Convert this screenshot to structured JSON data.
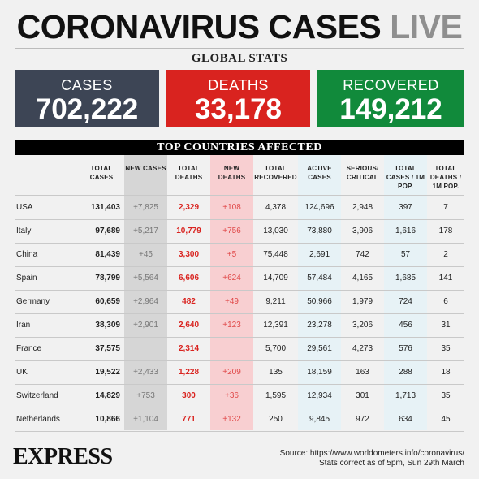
{
  "headline": {
    "main": "CORONAVIRUS CASES",
    "live": "LIVE"
  },
  "global_stats": {
    "title": "GLOBAL STATS",
    "cases": {
      "label": "CASES",
      "value": "702,222",
      "color": "#3d4555"
    },
    "deaths": {
      "label": "DEATHS",
      "value": "33,178",
      "color": "#d9231f"
    },
    "recovered": {
      "label": "RECOVERED",
      "value": "149,212",
      "color": "#118a3b"
    }
  },
  "table": {
    "title": "TOP COUNTRIES AFFECTED",
    "headers": [
      "TOTAL CASES",
      "NEW CASES",
      "TOTAL DEATHS",
      "NEW DEATHS",
      "TOTAL RECOVERED",
      "ACTIVE CASES",
      "SERIOUS/ CRITICAL",
      "TOTAL CASES / 1M POP.",
      "TOTAL DEATHS / 1M POP."
    ],
    "rows": [
      [
        "USA",
        "131,403",
        "+7,825",
        "2,329",
        "+108",
        "4,378",
        "124,696",
        "2,948",
        "397",
        "7"
      ],
      [
        "Italy",
        "97,689",
        "+5,217",
        "10,779",
        "+756",
        "13,030",
        "73,880",
        "3,906",
        "1,616",
        "178"
      ],
      [
        "China",
        "81,439",
        "+45",
        "3,300",
        "+5",
        "75,448",
        "2,691",
        "742",
        "57",
        "2"
      ],
      [
        "Spain",
        "78,799",
        "+5,564",
        "6,606",
        "+624",
        "14,709",
        "57,484",
        "4,165",
        "1,685",
        "141"
      ],
      [
        "Germany",
        "60,659",
        "+2,964",
        "482",
        "+49",
        "9,211",
        "50,966",
        "1,979",
        "724",
        "6"
      ],
      [
        "Iran",
        "38,309",
        "+2,901",
        "2,640",
        "+123",
        "12,391",
        "23,278",
        "3,206",
        "456",
        "31"
      ],
      [
        "France",
        "37,575",
        "",
        "2,314",
        "",
        "5,700",
        "29,561",
        "4,273",
        "576",
        "35"
      ],
      [
        "UK",
        "19,522",
        "+2,433",
        "1,228",
        "+209",
        "135",
        "18,159",
        "163",
        "288",
        "18"
      ],
      [
        "Switzerland",
        "14,829",
        "+753",
        "300",
        "+36",
        "1,595",
        "12,934",
        "301",
        "1,713",
        "35"
      ],
      [
        "Netherlands",
        "10,866",
        "+1,104",
        "771",
        "+132",
        "250",
        "9,845",
        "972",
        "634",
        "45"
      ]
    ]
  },
  "footer": {
    "logo": "EXPRESS",
    "source": "Source: https://www.worldometers.info/coronavirus/",
    "note": "Stats correct as of 5pm, Sun 29th March"
  }
}
